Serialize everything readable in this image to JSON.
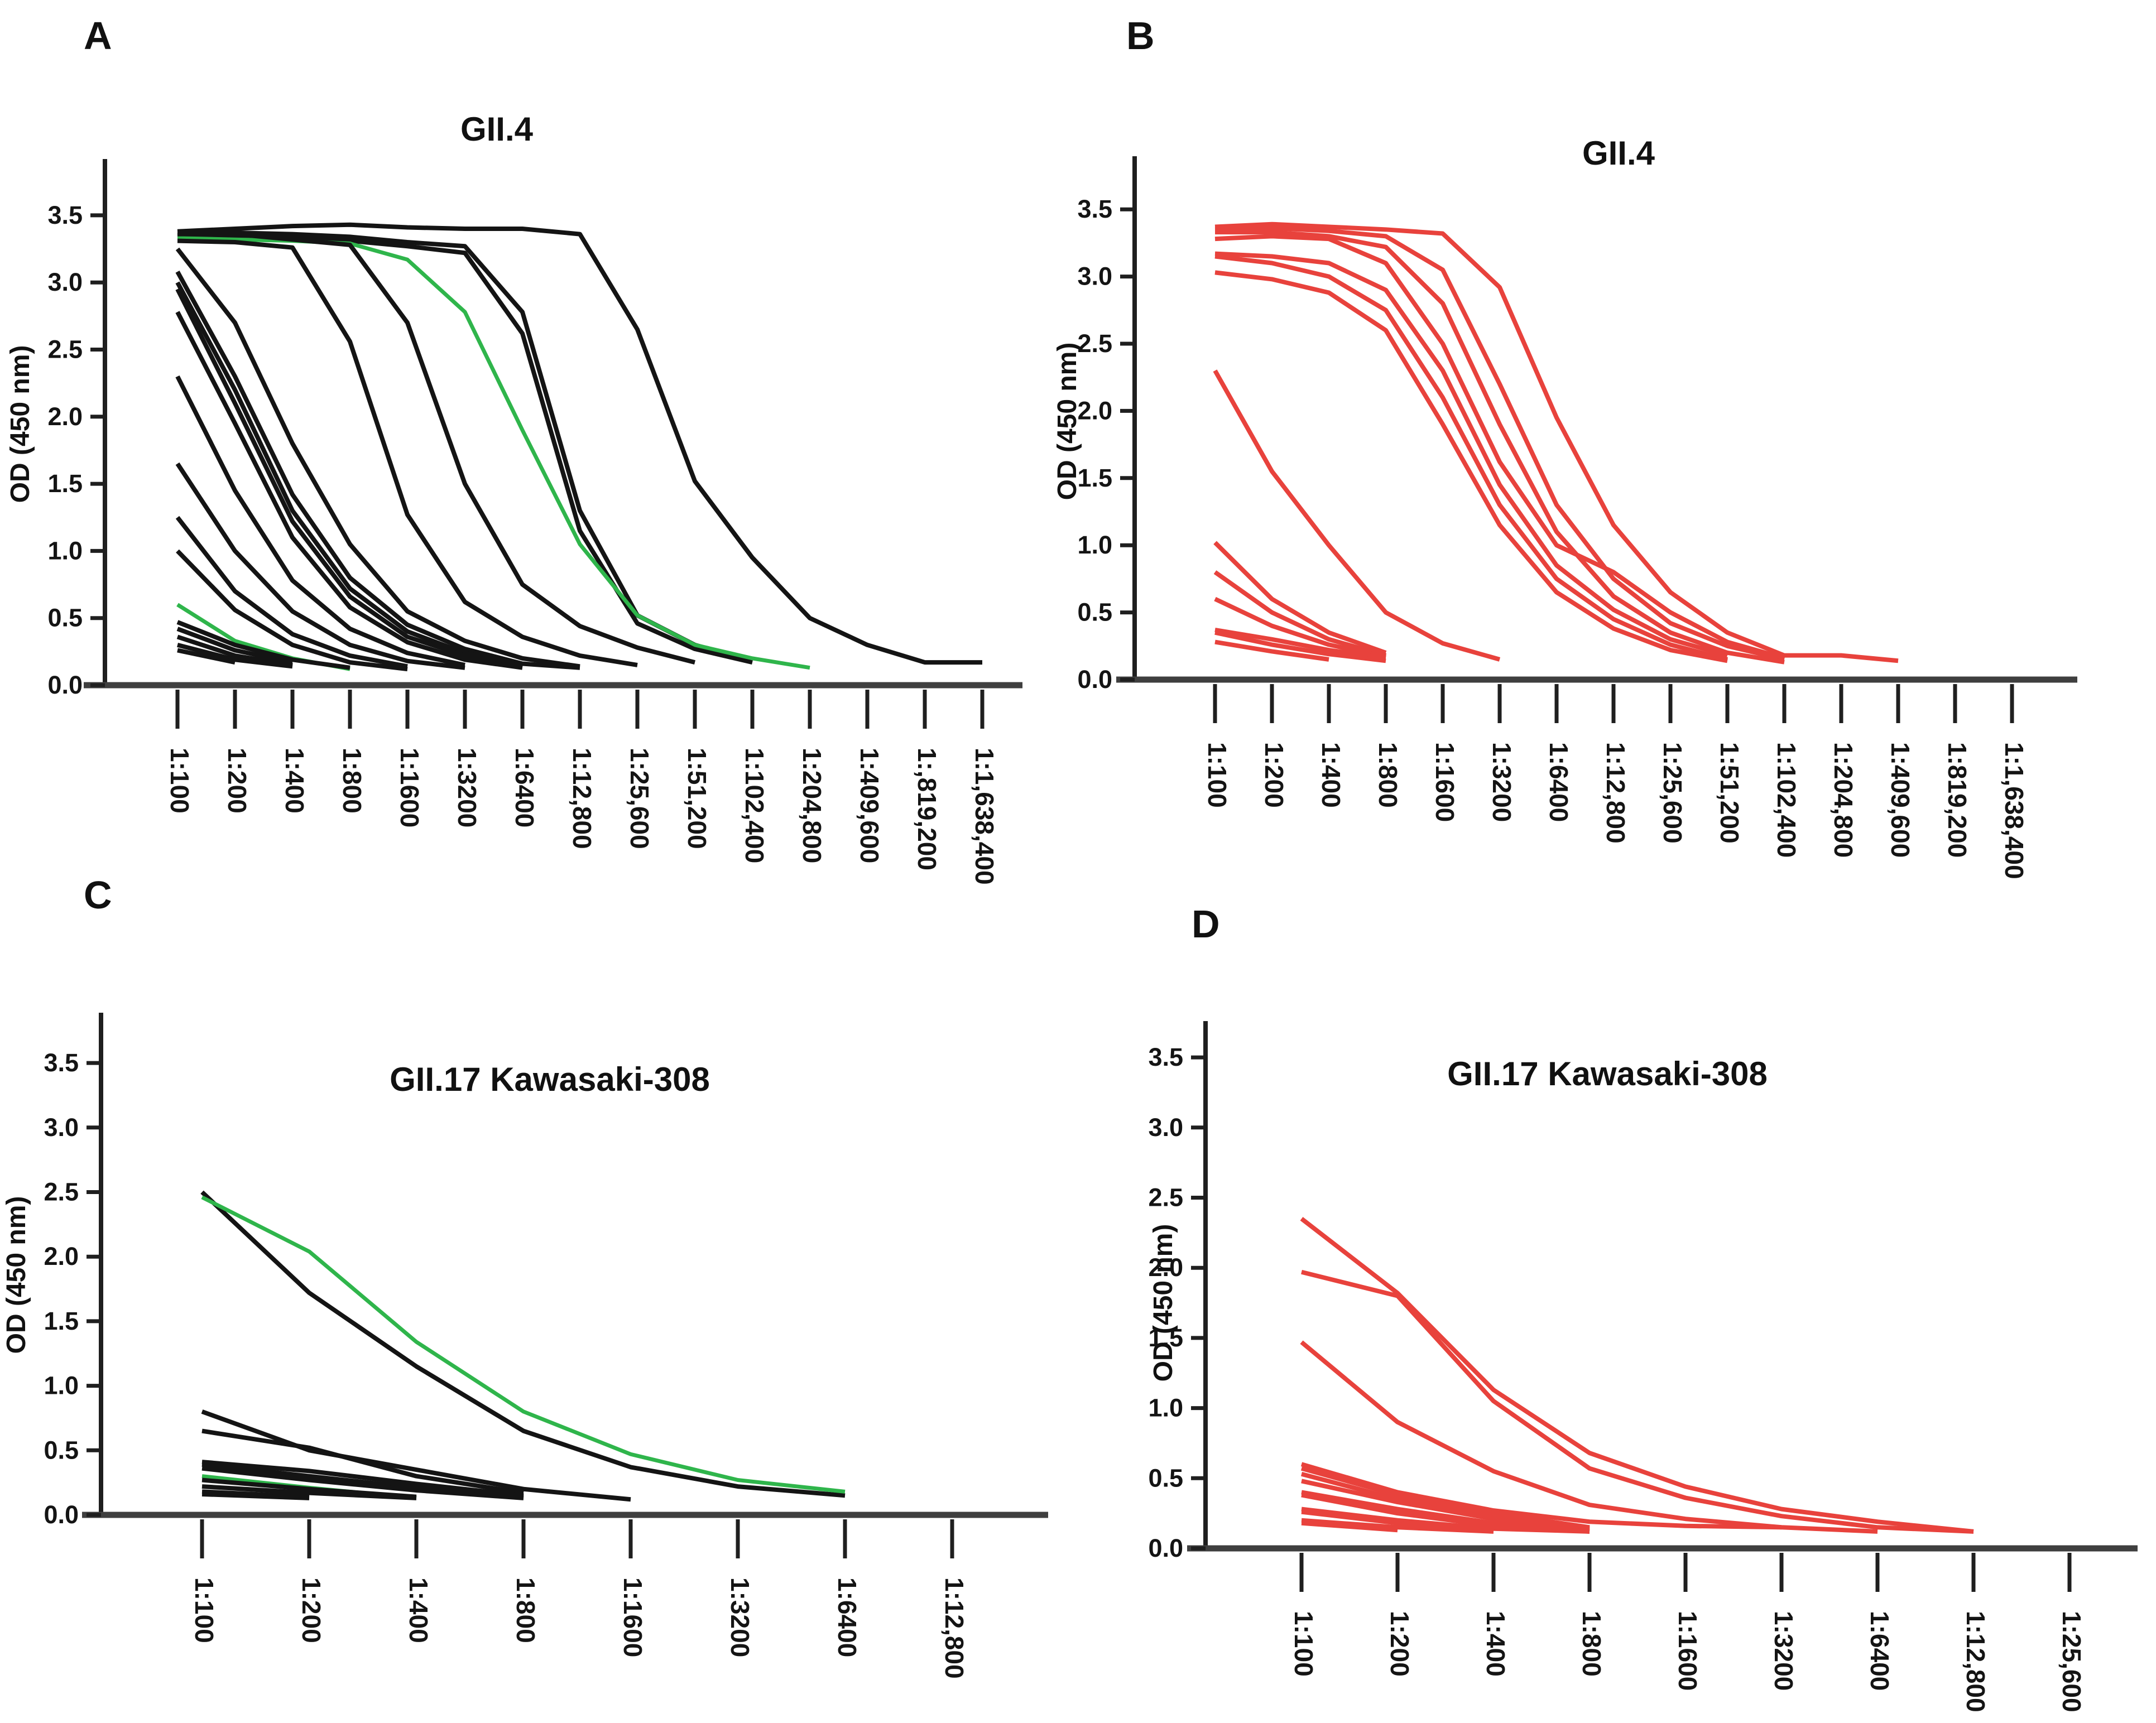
{
  "figure": {
    "background": "#ffffff",
    "colors": {
      "black": "#141414",
      "green": "#2fb54b",
      "red": "#e8423c",
      "axis_baseline": "#3f3f3f",
      "axis_vertical": "#1f1f1f"
    }
  },
  "chart_data": [
    {
      "id": "A",
      "panel_label": "A",
      "type": "line",
      "title": "GII.4",
      "ylabel": "OD (450 nm)",
      "ylim": [
        0.0,
        3.9
      ],
      "yticks": [
        0.0,
        0.5,
        1.0,
        1.5,
        2.0,
        2.5,
        3.0,
        3.5
      ],
      "ytick_labels": [
        "0.0",
        "0.5",
        "1.0",
        "1.5",
        "2.0",
        "2.5",
        "3.0",
        "3.5"
      ],
      "grid": false,
      "legend": "none",
      "categories": [
        "1:100",
        "1:200",
        "1:400",
        "1:800",
        "1:1600",
        "1:3200",
        "1:6400",
        "1:12,800",
        "1:25,600",
        "1:51,200",
        "1:102,400",
        "1:204,800",
        "1:409,600",
        "1:,819,200",
        "1:1,638,400"
      ],
      "series": [
        {
          "color": "black",
          "values": [
            3.38,
            3.4,
            3.42,
            3.43,
            3.41,
            3.4,
            3.4,
            3.36,
            2.65,
            1.52,
            0.95,
            0.5,
            0.3,
            0.17,
            0.17
          ]
        },
        {
          "color": "black",
          "values": [
            3.35,
            3.37,
            3.36,
            3.34,
            3.3,
            3.27,
            2.78,
            1.3,
            0.52,
            0.3,
            0.18
          ]
        },
        {
          "color": "black",
          "values": [
            3.34,
            3.35,
            3.33,
            3.31,
            3.27,
            3.22,
            2.62,
            1.15,
            0.46,
            0.27,
            0.17
          ]
        },
        {
          "color": "green",
          "values": [
            3.33,
            3.32,
            3.31,
            3.29,
            3.17,
            2.78,
            1.9,
            1.05,
            0.52,
            0.3,
            0.2,
            0.13
          ]
        },
        {
          "color": "black",
          "values": [
            3.36,
            3.36,
            3.32,
            3.28,
            2.7,
            1.5,
            0.75,
            0.44,
            0.28,
            0.17
          ]
        },
        {
          "color": "black",
          "values": [
            3.31,
            3.3,
            3.26,
            2.56,
            1.27,
            0.62,
            0.36,
            0.22,
            0.15
          ]
        },
        {
          "color": "black",
          "values": [
            3.25,
            2.7,
            1.8,
            1.05,
            0.55,
            0.33,
            0.2,
            0.14
          ]
        },
        {
          "color": "black",
          "values": [
            3.08,
            2.3,
            1.42,
            0.8,
            0.45,
            0.27,
            0.16,
            0.13
          ]
        },
        {
          "color": "black",
          "values": [
            3.0,
            2.2,
            1.3,
            0.72,
            0.4,
            0.24,
            0.15
          ]
        },
        {
          "color": "black",
          "values": [
            2.95,
            2.1,
            1.22,
            0.66,
            0.36,
            0.22,
            0.14
          ]
        },
        {
          "color": "black",
          "values": [
            2.78,
            1.95,
            1.1,
            0.58,
            0.32,
            0.19,
            0.13
          ]
        },
        {
          "color": "black",
          "values": [
            2.3,
            1.45,
            0.78,
            0.42,
            0.24,
            0.15
          ]
        },
        {
          "color": "black",
          "values": [
            1.65,
            1.0,
            0.55,
            0.3,
            0.18,
            0.13
          ]
        },
        {
          "color": "black",
          "values": [
            1.25,
            0.7,
            0.38,
            0.22,
            0.14
          ]
        },
        {
          "color": "black",
          "values": [
            1.0,
            0.56,
            0.3,
            0.17,
            0.12
          ]
        },
        {
          "color": "green",
          "values": [
            0.6,
            0.33,
            0.2,
            0.12
          ]
        },
        {
          "color": "black",
          "values": [
            0.47,
            0.3,
            0.19,
            0.13
          ]
        },
        {
          "color": "black",
          "values": [
            0.42,
            0.26,
            0.17
          ]
        },
        {
          "color": "black",
          "values": [
            0.36,
            0.22,
            0.15
          ]
        },
        {
          "color": "black",
          "values": [
            0.3,
            0.19,
            0.14
          ]
        },
        {
          "color": "black",
          "values": [
            0.26,
            0.17
          ]
        }
      ]
    },
    {
      "id": "B",
      "panel_label": "B",
      "type": "line",
      "title": "GII.4",
      "ylabel": "OD (450 nm)",
      "ylim": [
        0.0,
        3.9
      ],
      "yticks": [
        0.0,
        0.5,
        1.0,
        1.5,
        2.0,
        2.5,
        3.0,
        3.5
      ],
      "ytick_labels": [
        "0.0",
        "0.5",
        "1.0",
        "1.5",
        "2.0",
        "2.5",
        "3.0",
        "3.5"
      ],
      "grid": false,
      "legend": "none",
      "categories": [
        "1:100",
        "1:200",
        "1:400",
        "1:800",
        "1:1600",
        "1:3200",
        "1:6400",
        "1:12,800",
        "1:25,600",
        "1:51,200",
        "1:102,400",
        "1:204,800",
        "1:409,600",
        "1:819,200",
        "1:1,638,400"
      ],
      "series": [
        {
          "color": "red",
          "values": [
            3.37,
            3.39,
            3.37,
            3.35,
            3.32,
            2.92,
            1.95,
            1.15,
            0.65,
            0.35,
            0.18,
            0.18,
            0.14
          ]
        },
        {
          "color": "red",
          "values": [
            3.35,
            3.36,
            3.34,
            3.3,
            3.05,
            2.2,
            1.3,
            0.75,
            0.42,
            0.25,
            0.15
          ]
        },
        {
          "color": "red",
          "values": [
            3.33,
            3.33,
            3.3,
            3.22,
            2.8,
            1.9,
            1.1,
            0.62,
            0.35,
            0.2,
            0.13
          ]
        },
        {
          "color": "red",
          "values": [
            3.28,
            3.3,
            3.28,
            3.1,
            2.5,
            1.62,
            1.0,
            0.8,
            0.5,
            0.28,
            0.16
          ]
        },
        {
          "color": "red",
          "values": [
            3.17,
            3.15,
            3.1,
            2.9,
            2.3,
            1.45,
            0.85,
            0.52,
            0.3,
            0.18
          ]
        },
        {
          "color": "red",
          "values": [
            3.15,
            3.1,
            3.0,
            2.75,
            2.1,
            1.3,
            0.75,
            0.45,
            0.26,
            0.15
          ]
        },
        {
          "color": "red",
          "values": [
            3.03,
            2.98,
            2.88,
            2.6,
            1.9,
            1.15,
            0.65,
            0.38,
            0.22,
            0.14
          ]
        },
        {
          "color": "red",
          "values": [
            2.3,
            1.55,
            1.0,
            0.5,
            0.27,
            0.15
          ]
        },
        {
          "color": "red",
          "values": [
            1.02,
            0.6,
            0.35,
            0.2
          ]
        },
        {
          "color": "red",
          "values": [
            0.8,
            0.5,
            0.3,
            0.18
          ]
        },
        {
          "color": "red",
          "values": [
            0.6,
            0.4,
            0.26,
            0.17
          ]
        },
        {
          "color": "red",
          "values": [
            0.37,
            0.3,
            0.22,
            0.16
          ]
        },
        {
          "color": "red",
          "values": [
            0.35,
            0.26,
            0.19,
            0.14
          ]
        },
        {
          "color": "red",
          "values": [
            0.28,
            0.21,
            0.15
          ]
        }
      ]
    },
    {
      "id": "C",
      "panel_label": "C",
      "type": "line",
      "title": "GII.17 Kawasaki-308",
      "ylabel": "OD (450 nm)",
      "ylim": [
        0.0,
        3.9
      ],
      "yticks": [
        0.0,
        0.5,
        1.0,
        1.5,
        2.0,
        2.5,
        3.0,
        3.5
      ],
      "ytick_labels": [
        "0.0",
        "0.5",
        "1.0",
        "1.5",
        "2.0",
        "2.5",
        "3.0",
        "3.5"
      ],
      "grid": false,
      "legend": "none",
      "categories": [
        "1:100",
        "1:200",
        "1:400",
        "1:800",
        "1:1600",
        "1:3200",
        "1:6400",
        "1:12,800"
      ],
      "series": [
        {
          "color": "black",
          "values": [
            2.5,
            1.72,
            1.15,
            0.65,
            0.37,
            0.22,
            0.15
          ]
        },
        {
          "color": "green",
          "values": [
            2.46,
            2.04,
            1.34,
            0.8,
            0.47,
            0.27,
            0.18
          ]
        },
        {
          "color": "black",
          "values": [
            0.8,
            0.5,
            0.35,
            0.2,
            0.12
          ]
        },
        {
          "color": "black",
          "values": [
            0.65,
            0.52,
            0.3,
            0.17
          ]
        },
        {
          "color": "black",
          "values": [
            0.41,
            0.34,
            0.24,
            0.15
          ]
        },
        {
          "color": "black",
          "values": [
            0.39,
            0.3,
            0.21,
            0.14
          ]
        },
        {
          "color": "black",
          "values": [
            0.36,
            0.27,
            0.19,
            0.13
          ]
        },
        {
          "color": "green",
          "values": [
            0.3,
            0.21,
            0.13
          ]
        },
        {
          "color": "black",
          "values": [
            0.27,
            0.2,
            0.14
          ]
        },
        {
          "color": "black",
          "values": [
            0.22,
            0.17,
            0.13
          ]
        },
        {
          "color": "black",
          "values": [
            0.18,
            0.14
          ]
        },
        {
          "color": "black",
          "values": [
            0.16,
            0.13
          ]
        }
      ]
    },
    {
      "id": "D",
      "panel_label": "D",
      "type": "line",
      "title": "GII.17 Kawasaki-308",
      "ylabel": "OD (450 nm)",
      "ylim": [
        0.0,
        3.9
      ],
      "yticks": [
        0.0,
        0.5,
        1.0,
        1.5,
        2.0,
        2.5,
        3.0,
        3.5
      ],
      "ytick_labels": [
        "0.0",
        "0.5",
        "1.0",
        "1.5",
        "2.0",
        "2.5",
        "3.0",
        "3.5"
      ],
      "grid": false,
      "legend": "none",
      "categories": [
        "1:100",
        "1:200",
        "1:400",
        "1:800",
        "1:1600",
        "1:3200",
        "1:6400",
        "1:12,800",
        "1:25,600"
      ],
      "series": [
        {
          "color": "red",
          "values": [
            2.35,
            1.82,
            1.13,
            0.68,
            0.44,
            0.28,
            0.19,
            0.12
          ]
        },
        {
          "color": "red",
          "values": [
            1.97,
            1.8,
            1.05,
            0.57,
            0.36,
            0.23,
            0.15,
            0.12
          ]
        },
        {
          "color": "red",
          "values": [
            1.47,
            0.9,
            0.55,
            0.31,
            0.21,
            0.15,
            0.12
          ]
        },
        {
          "color": "red",
          "values": [
            0.6,
            0.4,
            0.27,
            0.19,
            0.16,
            0.15
          ]
        },
        {
          "color": "red",
          "values": [
            0.57,
            0.38,
            0.25,
            0.15
          ]
        },
        {
          "color": "red",
          "values": [
            0.53,
            0.35,
            0.23,
            0.14
          ]
        },
        {
          "color": "red",
          "values": [
            0.48,
            0.33,
            0.21,
            0.13
          ]
        },
        {
          "color": "red",
          "values": [
            0.4,
            0.28,
            0.18,
            0.12
          ]
        },
        {
          "color": "red",
          "values": [
            0.38,
            0.25,
            0.16,
            0.12
          ]
        },
        {
          "color": "red",
          "values": [
            0.28,
            0.2,
            0.14,
            0.12
          ]
        },
        {
          "color": "red",
          "values": [
            0.26,
            0.18,
            0.13
          ]
        },
        {
          "color": "red",
          "values": [
            0.2,
            0.15,
            0.12
          ]
        },
        {
          "color": "red",
          "values": [
            0.18,
            0.13
          ]
        }
      ]
    }
  ]
}
